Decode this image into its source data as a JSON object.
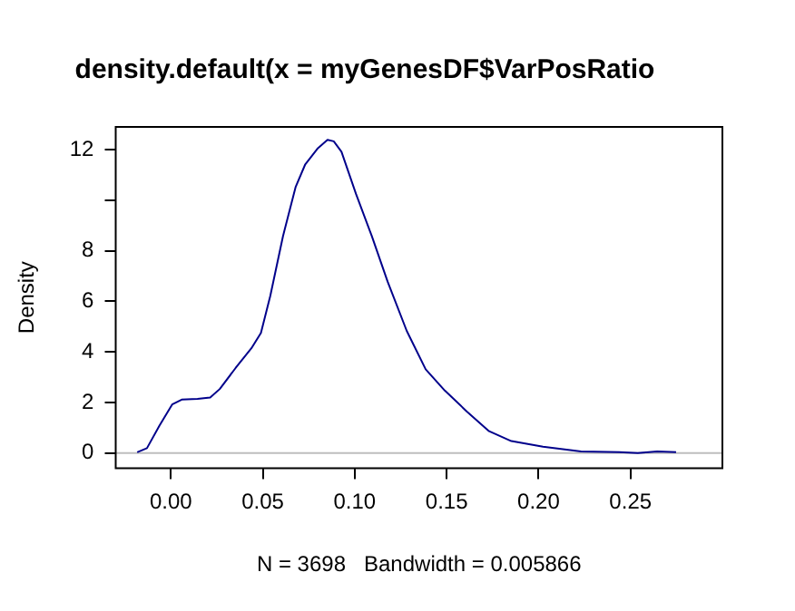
{
  "chart_data": {
    "type": "line",
    "title": "density.default(x = myGenesDF$VarPosRatio",
    "xlabel": "N = 3698   Bandwidth = 0.005866",
    "ylabel": "Density",
    "x": [
      -0.0183,
      -0.013,
      -0.0062,
      0.0007,
      0.0059,
      0.0145,
      0.0214,
      0.0266,
      0.0352,
      0.0438,
      0.049,
      0.0541,
      0.061,
      0.0679,
      0.0731,
      0.08,
      0.0852,
      0.0886,
      0.0928,
      0.1007,
      0.1093,
      0.1179,
      0.1283,
      0.1386,
      0.149,
      0.161,
      0.1731,
      0.1852,
      0.2024,
      0.2231,
      0.2438,
      0.254,
      0.2645,
      0.2748
    ],
    "series": [
      {
        "color": "#00008b",
        "values": [
          0.03,
          0.19,
          1.08,
          1.92,
          2.11,
          2.14,
          2.19,
          2.53,
          3.36,
          4.14,
          4.75,
          6.22,
          8.58,
          10.53,
          11.42,
          12.06,
          12.39,
          12.33,
          11.92,
          10.25,
          8.58,
          6.78,
          4.83,
          3.31,
          2.47,
          1.64,
          0.86,
          0.47,
          0.25,
          0.06,
          0.03,
          0,
          0.06,
          0.03
        ]
      }
    ],
    "xlim": [
      -0.03,
      0.3
    ],
    "ylim": [
      -0.6,
      12.9
    ],
    "xticks": [
      {
        "value": 0,
        "label": "0.00"
      },
      0.05,
      {
        "value": 0.1,
        "label": "0.10"
      },
      0.15,
      {
        "value": 0.2,
        "label": "0.20"
      },
      0.25
    ],
    "yticks": [
      0,
      2,
      4,
      6,
      8,
      {
        "value": 10,
        "label": null
      },
      12
    ],
    "ref_lines": [
      {
        "axis": "y",
        "value": 0,
        "color": "#bebebe"
      }
    ],
    "grid": false,
    "legend": false,
    "marker": "none",
    "line_style": "solid"
  }
}
